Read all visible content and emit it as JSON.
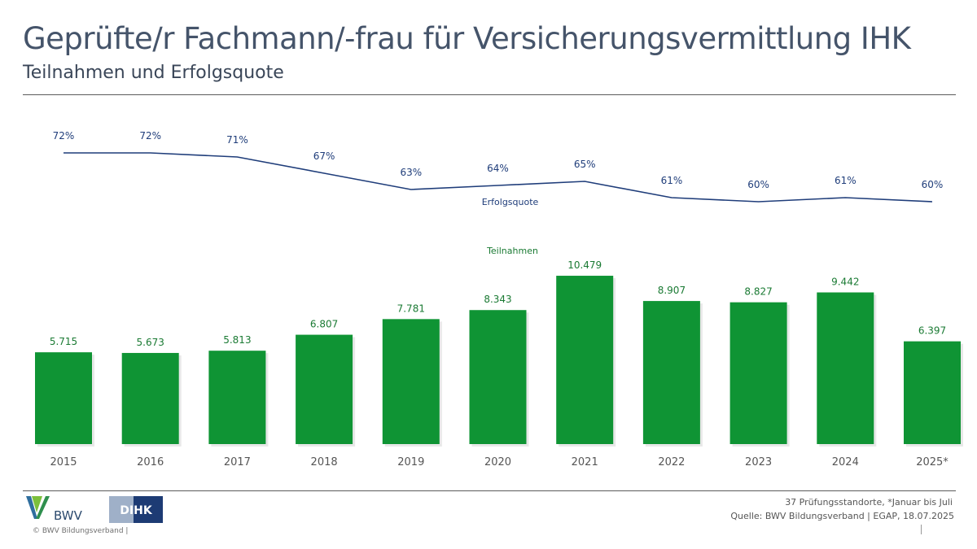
{
  "header": {
    "title": "Geprüfte/r Fachmann/-frau für Versicherungsvermittlung IHK",
    "subtitle": "Teilnahmen und Erfolgsquote"
  },
  "chart_data": {
    "type": "bar",
    "categories": [
      "2015",
      "2016",
      "2017",
      "2018",
      "2019",
      "2020",
      "2021",
      "2022",
      "2023",
      "2024",
      "2025*"
    ],
    "series": [
      {
        "name": "Teilnahmen",
        "type": "bar",
        "values": [
          5715,
          5673,
          5813,
          6807,
          7781,
          8343,
          10479,
          8907,
          8827,
          9442,
          6397
        ],
        "labels": [
          "5.715",
          "5.673",
          "5.813",
          "6.807",
          "7.781",
          "8.343",
          "10.479",
          "8.907",
          "8.827",
          "9.442",
          "6.397"
        ],
        "color": "#0f9434"
      },
      {
        "name": "Erfolgsquote",
        "type": "line",
        "values": [
          72,
          72,
          71,
          67,
          63,
          64,
          65,
          61,
          60,
          61,
          60
        ],
        "labels": [
          "72%",
          "72%",
          "71%",
          "67%",
          "63%",
          "64%",
          "65%",
          "61%",
          "60%",
          "61%",
          "60%"
        ],
        "color": "#1f3d7a"
      }
    ],
    "grid": false,
    "legend": "inline labels"
  },
  "branding": {
    "bwv_text": "BWV",
    "dihk_text": "DIHK",
    "copyright": "© BWV Bildungsverband |"
  },
  "footer": {
    "note": "37 Prüfungsstandorte, *Januar bis Juli",
    "source": "Quelle: BWV Bildungsverband | EGAP, 18.07.2025"
  }
}
